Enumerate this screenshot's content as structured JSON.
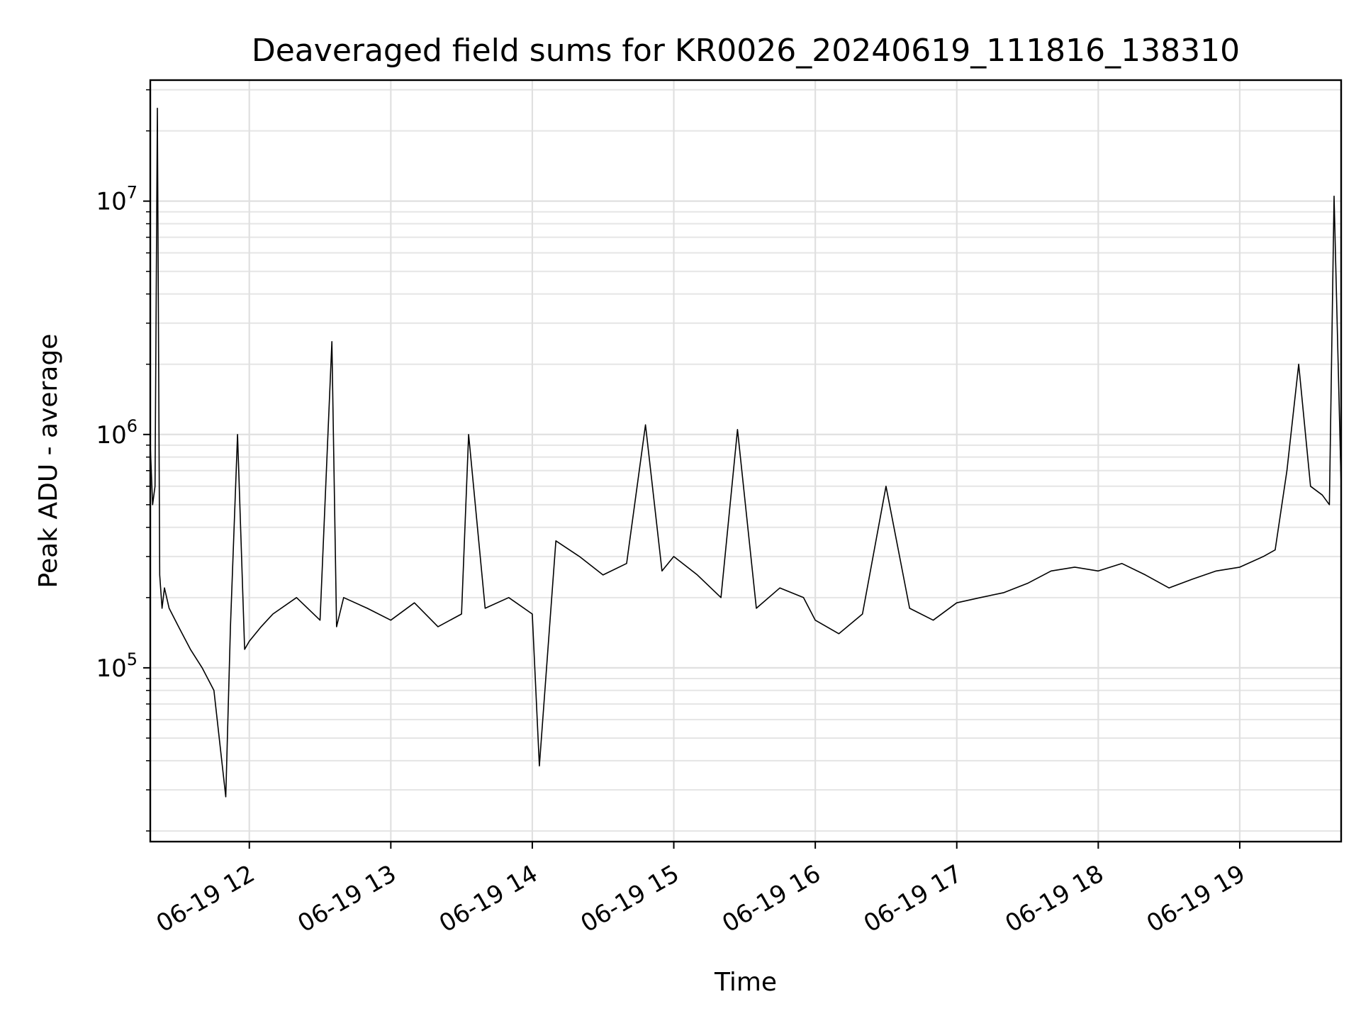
{
  "chart_data": {
    "type": "line",
    "title": "Deaveraged field sums for KR0026_20240619_111816_138310",
    "xlabel": "Time",
    "ylabel": "Peak ADU - average",
    "yscale": "log",
    "xlim": [
      "06-19 11:18",
      "06-19 19:43"
    ],
    "ylim": [
      18000,
      33000000
    ],
    "grid": true,
    "x_ticks": [
      "06-19 12",
      "06-19 13",
      "06-19 14",
      "06-19 15",
      "06-19 16",
      "06-19 17",
      "06-19 18",
      "06-19 19"
    ],
    "y_ticks": [
      {
        "base": "10",
        "exp": "5",
        "value": 100000
      },
      {
        "base": "10",
        "exp": "6",
        "value": 1000000
      },
      {
        "base": "10",
        "exp": "7",
        "value": 10000000
      }
    ],
    "series": [
      {
        "color": "#000000",
        "x": [
          "06-19 11:18",
          "06-19 11:19",
          "06-19 11:20",
          "06-19 11:21",
          "06-19 11:22",
          "06-19 11:23",
          "06-19 11:24",
          "06-19 11:26",
          "06-19 11:30",
          "06-19 11:35",
          "06-19 11:40",
          "06-19 11:45",
          "06-19 11:50",
          "06-19 11:52",
          "06-19 11:55",
          "06-19 11:58",
          "06-19 12:00",
          "06-19 12:05",
          "06-19 12:10",
          "06-19 12:20",
          "06-19 12:30",
          "06-19 12:35",
          "06-19 12:37",
          "06-19 12:40",
          "06-19 12:50",
          "06-19 13:00",
          "06-19 13:10",
          "06-19 13:20",
          "06-19 13:30",
          "06-19 13:33",
          "06-19 13:40",
          "06-19 13:50",
          "06-19 14:00",
          "06-19 14:03",
          "06-19 14:10",
          "06-19 14:20",
          "06-19 14:30",
          "06-19 14:40",
          "06-19 14:48",
          "06-19 14:55",
          "06-19 15:00",
          "06-19 15:10",
          "06-19 15:20",
          "06-19 15:27",
          "06-19 15:35",
          "06-19 15:45",
          "06-19 15:55",
          "06-19 16:00",
          "06-19 16:10",
          "06-19 16:20",
          "06-19 16:30",
          "06-19 16:40",
          "06-19 16:50",
          "06-19 17:00",
          "06-19 17:10",
          "06-19 17:20",
          "06-19 17:30",
          "06-19 17:40",
          "06-19 17:50",
          "06-19 18:00",
          "06-19 18:10",
          "06-19 18:20",
          "06-19 18:30",
          "06-19 18:40",
          "06-19 18:50",
          "06-19 19:00",
          "06-19 19:10",
          "06-19 19:15",
          "06-19 19:20",
          "06-19 19:25",
          "06-19 19:30",
          "06-19 19:35",
          "06-19 19:38",
          "06-19 19:40",
          "06-19 19:43"
        ],
        "y": [
          900000,
          500000,
          600000,
          25000000,
          250000,
          180000,
          220000,
          180000,
          150000,
          120000,
          100000,
          80000,
          28000,
          150000,
          1000000,
          120000,
          130000,
          150000,
          170000,
          200000,
          160000,
          2500000,
          150000,
          200000,
          180000,
          160000,
          190000,
          150000,
          170000,
          1000000,
          180000,
          200000,
          170000,
          38000,
          350000,
          300000,
          250000,
          280000,
          1100000,
          260000,
          300000,
          250000,
          200000,
          1050000,
          180000,
          220000,
          200000,
          160000,
          140000,
          170000,
          600000,
          180000,
          160000,
          190000,
          200000,
          210000,
          230000,
          260000,
          270000,
          260000,
          280000,
          250000,
          220000,
          240000,
          260000,
          270000,
          300000,
          320000,
          700000,
          2000000,
          600000,
          550000,
          500000,
          10500000,
          600000
        ]
      }
    ]
  }
}
